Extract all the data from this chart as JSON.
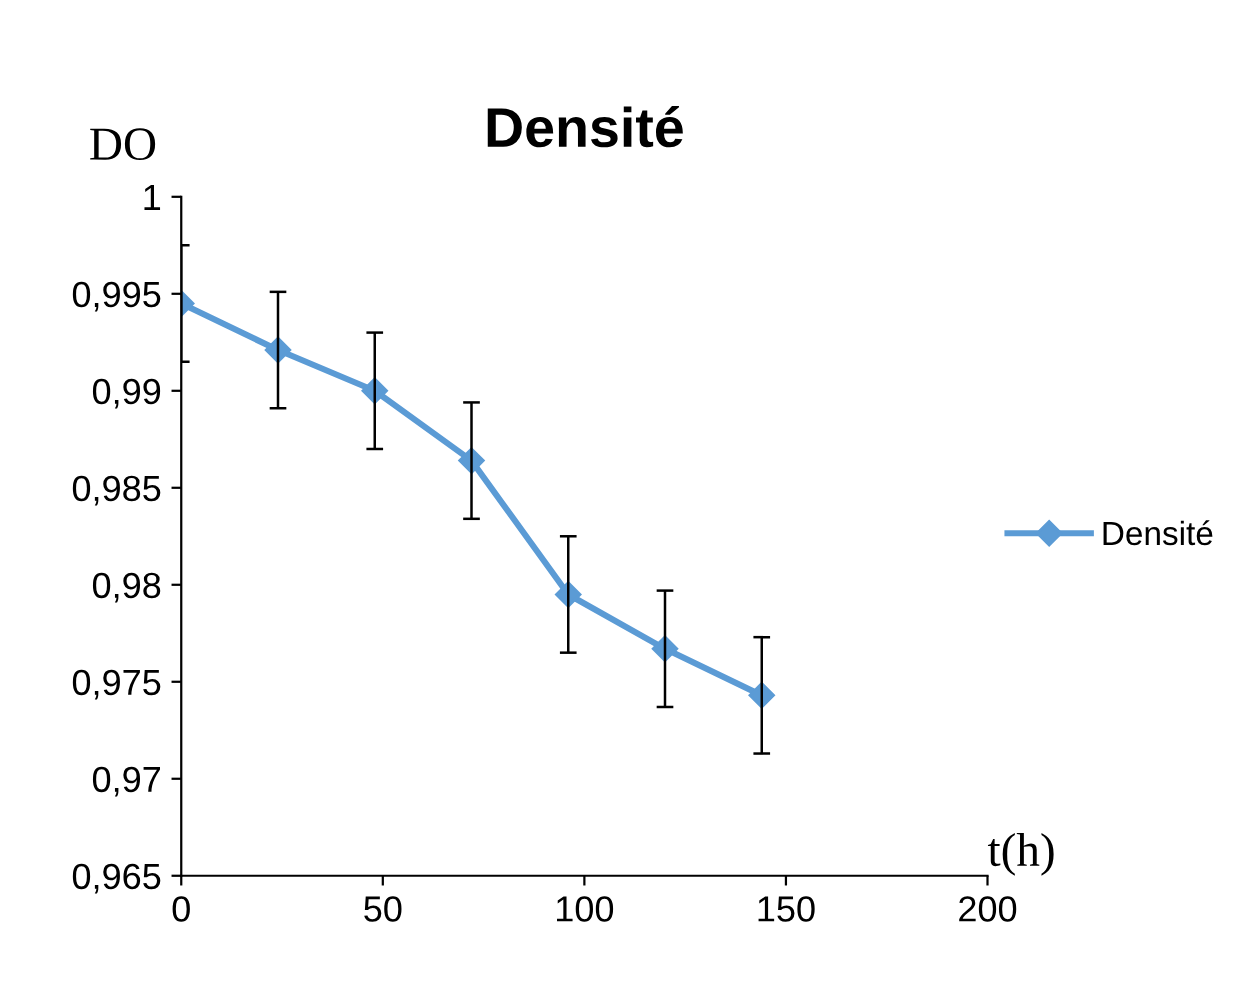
{
  "chart_data": {
    "type": "line",
    "title": "Densité",
    "xlabel": "t(h)",
    "ylabel": "DO",
    "x": [
      0,
      24,
      48,
      72,
      96,
      120,
      144
    ],
    "series": [
      {
        "name": "Densité",
        "color": "#5b9bd5",
        "values": [
          0.9945,
          0.9921,
          0.99,
          0.9864,
          0.9795,
          0.9767,
          0.9743
        ],
        "errors": [
          0.003,
          0.003,
          0.003,
          0.003,
          0.003,
          0.003,
          0.003
        ]
      }
    ],
    "xlim": [
      0,
      200
    ],
    "xticks": [
      0,
      50,
      100,
      150,
      200
    ],
    "ylim": [
      0.965,
      1
    ],
    "yticks": [
      {
        "value": 0.965,
        "label": "0,965"
      },
      {
        "value": 0.97,
        "label": "0,97"
      },
      {
        "value": 0.975,
        "label": "0,975"
      },
      {
        "value": 0.98,
        "label": "0,98"
      },
      {
        "value": 0.985,
        "label": "0,985"
      },
      {
        "value": 0.99,
        "label": "0,99"
      },
      {
        "value": 0.995,
        "label": "0,995"
      },
      {
        "value": 1,
        "label": "1"
      }
    ],
    "grid": false,
    "legend": "right",
    "marker": "diamond",
    "line_style": "solid"
  }
}
